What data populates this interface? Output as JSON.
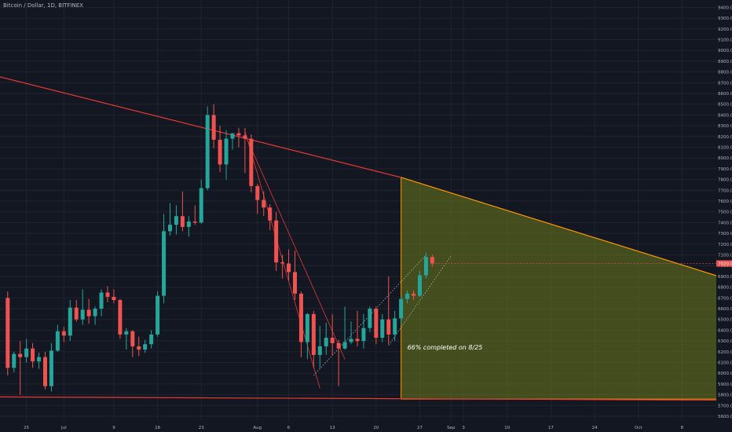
{
  "header": {
    "symbol": "Bitcoin / Dollar, 1D, BITFINEX"
  },
  "colors": {
    "background": "#131722",
    "grid": "#1f2430",
    "up": "#26a69a",
    "down": "#ef5350",
    "trendline": "#e53935",
    "projection_fill": "#6b7a1a",
    "projection_edge": "#ff9800",
    "axis_text": "#b2b5be"
  },
  "chart_data": {
    "type": "candlestick",
    "title": "Bitcoin / Dollar, 1D, BITFINEX",
    "ylim": [
      5600,
      9500
    ],
    "y_ticks": [
      5600,
      5700,
      5800,
      5900,
      6000,
      6100,
      6200,
      6300,
      6400,
      6500,
      6600,
      6700,
      6800,
      6900,
      7000,
      7100,
      7200,
      7300,
      7400,
      7500,
      7600,
      7700,
      7800,
      7900,
      8000,
      8100,
      8200,
      8300,
      8400,
      8500,
      8600,
      8700,
      8800,
      8900,
      9000,
      9100,
      9200,
      9300,
      9400
    ],
    "x_tick_labels": [
      "25",
      "Jul",
      "9",
      "16",
      "23",
      "Aug",
      "6",
      "13",
      "20",
      "27",
      "Sep",
      "3",
      "10",
      "17",
      "24",
      "Oct",
      "8"
    ],
    "x_tick_dates": [
      "2018-06-25",
      "2018-07-01",
      "2018-07-09",
      "2018-07-16",
      "2018-07-23",
      "2018-08-01",
      "2018-08-06",
      "2018-08-13",
      "2018-08-20",
      "2018-08-27",
      "2018-09-01",
      "2018-09-03",
      "2018-09-10",
      "2018-09-17",
      "2018-09-24",
      "2018-10-01",
      "2018-10-08"
    ],
    "start_date": "2018-06-22",
    "candles": [
      {
        "date": "2018-06-22",
        "o": 6700,
        "h": 6760,
        "l": 5980,
        "c": 6050
      },
      {
        "date": "2018-06-23",
        "o": 6050,
        "h": 6200,
        "l": 6010,
        "c": 6180
      },
      {
        "date": "2018-06-24",
        "o": 6180,
        "h": 6300,
        "l": 5800,
        "c": 6150
      },
      {
        "date": "2018-06-25",
        "o": 6150,
        "h": 6320,
        "l": 6100,
        "c": 6230
      },
      {
        "date": "2018-06-26",
        "o": 6230,
        "h": 6280,
        "l": 6050,
        "c": 6110
      },
      {
        "date": "2018-06-27",
        "o": 6110,
        "h": 6190,
        "l": 6040,
        "c": 6150
      },
      {
        "date": "2018-06-28",
        "o": 6150,
        "h": 6200,
        "l": 5850,
        "c": 5880
      },
      {
        "date": "2018-06-29",
        "o": 5880,
        "h": 6280,
        "l": 5830,
        "c": 6210
      },
      {
        "date": "2018-06-30",
        "o": 6210,
        "h": 6450,
        "l": 6200,
        "c": 6390
      },
      {
        "date": "2018-07-01",
        "o": 6390,
        "h": 6430,
        "l": 6290,
        "c": 6350
      },
      {
        "date": "2018-07-02",
        "o": 6350,
        "h": 6680,
        "l": 6300,
        "c": 6610
      },
      {
        "date": "2018-07-03",
        "o": 6610,
        "h": 6680,
        "l": 6480,
        "c": 6500
      },
      {
        "date": "2018-07-04",
        "o": 6500,
        "h": 6780,
        "l": 6450,
        "c": 6590
      },
      {
        "date": "2018-07-05",
        "o": 6590,
        "h": 6690,
        "l": 6460,
        "c": 6530
      },
      {
        "date": "2018-07-06",
        "o": 6530,
        "h": 6620,
        "l": 6450,
        "c": 6600
      },
      {
        "date": "2018-07-07",
        "o": 6600,
        "h": 6780,
        "l": 6530,
        "c": 6750
      },
      {
        "date": "2018-07-08",
        "o": 6750,
        "h": 6810,
        "l": 6660,
        "c": 6710
      },
      {
        "date": "2018-07-09",
        "o": 6710,
        "h": 6780,
        "l": 6650,
        "c": 6680
      },
      {
        "date": "2018-07-10",
        "o": 6680,
        "h": 6690,
        "l": 6320,
        "c": 6360
      },
      {
        "date": "2018-07-11",
        "o": 6360,
        "h": 6420,
        "l": 6220,
        "c": 6390
      },
      {
        "date": "2018-07-12",
        "o": 6390,
        "h": 6400,
        "l": 6150,
        "c": 6250
      },
      {
        "date": "2018-07-13",
        "o": 6250,
        "h": 6340,
        "l": 6160,
        "c": 6220
      },
      {
        "date": "2018-07-14",
        "o": 6220,
        "h": 6310,
        "l": 6190,
        "c": 6270
      },
      {
        "date": "2018-07-15",
        "o": 6270,
        "h": 6400,
        "l": 6230,
        "c": 6360
      },
      {
        "date": "2018-07-16",
        "o": 6360,
        "h": 6760,
        "l": 6340,
        "c": 6720
      },
      {
        "date": "2018-07-17",
        "o": 6720,
        "h": 7480,
        "l": 6650,
        "c": 7320
      },
      {
        "date": "2018-07-18",
        "o": 7320,
        "h": 7580,
        "l": 7280,
        "c": 7380
      },
      {
        "date": "2018-07-19",
        "o": 7380,
        "h": 7560,
        "l": 7290,
        "c": 7460
      },
      {
        "date": "2018-07-20",
        "o": 7460,
        "h": 7690,
        "l": 7320,
        "c": 7360
      },
      {
        "date": "2018-07-21",
        "o": 7360,
        "h": 7460,
        "l": 7270,
        "c": 7410
      },
      {
        "date": "2018-07-22",
        "o": 7410,
        "h": 7560,
        "l": 7380,
        "c": 7400
      },
      {
        "date": "2018-07-23",
        "o": 7400,
        "h": 7800,
        "l": 7390,
        "c": 7720
      },
      {
        "date": "2018-07-24",
        "o": 7720,
        "h": 8480,
        "l": 7700,
        "c": 8400
      },
      {
        "date": "2018-07-25",
        "o": 8400,
        "h": 8500,
        "l": 8090,
        "c": 8170
      },
      {
        "date": "2018-07-26",
        "o": 8170,
        "h": 8300,
        "l": 7870,
        "c": 7940
      },
      {
        "date": "2018-07-27",
        "o": 7940,
        "h": 8260,
        "l": 7800,
        "c": 8180
      },
      {
        "date": "2018-07-28",
        "o": 8180,
        "h": 8230,
        "l": 8080,
        "c": 8230
      },
      {
        "date": "2018-07-29",
        "o": 8230,
        "h": 8280,
        "l": 8100,
        "c": 8210
      },
      {
        "date": "2018-07-30",
        "o": 8210,
        "h": 8280,
        "l": 7860,
        "c": 8180
      },
      {
        "date": "2018-07-31",
        "o": 8180,
        "h": 8220,
        "l": 7680,
        "c": 7740
      },
      {
        "date": "2018-08-01",
        "o": 7740,
        "h": 7760,
        "l": 7480,
        "c": 7610
      },
      {
        "date": "2018-08-02",
        "o": 7610,
        "h": 7690,
        "l": 7460,
        "c": 7540
      },
      {
        "date": "2018-08-03",
        "o": 7540,
        "h": 7570,
        "l": 7330,
        "c": 7420
      },
      {
        "date": "2018-08-04",
        "o": 7420,
        "h": 7500,
        "l": 6950,
        "c": 7030
      },
      {
        "date": "2018-08-05",
        "o": 7030,
        "h": 7100,
        "l": 6880,
        "c": 7020
      },
      {
        "date": "2018-08-06",
        "o": 7020,
        "h": 7150,
        "l": 6860,
        "c": 6940
      },
      {
        "date": "2018-08-07",
        "o": 6940,
        "h": 7140,
        "l": 6680,
        "c": 6740
      },
      {
        "date": "2018-08-08",
        "o": 6740,
        "h": 6760,
        "l": 6150,
        "c": 6290
      },
      {
        "date": "2018-08-09",
        "o": 6290,
        "h": 6560,
        "l": 6130,
        "c": 6550
      },
      {
        "date": "2018-08-10",
        "o": 6550,
        "h": 6580,
        "l": 6050,
        "c": 6170
      },
      {
        "date": "2018-08-11",
        "o": 6170,
        "h": 6440,
        "l": 6050,
        "c": 6250
      },
      {
        "date": "2018-08-12",
        "o": 6250,
        "h": 6470,
        "l": 6170,
        "c": 6330
      },
      {
        "date": "2018-08-13",
        "o": 6330,
        "h": 6550,
        "l": 6170,
        "c": 6280
      },
      {
        "date": "2018-08-14",
        "o": 6280,
        "h": 6310,
        "l": 5880,
        "c": 6230
      },
      {
        "date": "2018-08-15",
        "o": 6230,
        "h": 6620,
        "l": 6220,
        "c": 6290
      },
      {
        "date": "2018-08-16",
        "o": 6290,
        "h": 6480,
        "l": 6270,
        "c": 6320
      },
      {
        "date": "2018-08-17",
        "o": 6320,
        "h": 6580,
        "l": 6250,
        "c": 6300
      },
      {
        "date": "2018-08-18",
        "o": 6300,
        "h": 6550,
        "l": 6230,
        "c": 6420
      },
      {
        "date": "2018-08-19",
        "o": 6420,
        "h": 6620,
        "l": 6380,
        "c": 6600
      },
      {
        "date": "2018-08-20",
        "o": 6600,
        "h": 6620,
        "l": 6270,
        "c": 6330
      },
      {
        "date": "2018-08-21",
        "o": 6330,
        "h": 6550,
        "l": 6290,
        "c": 6500
      },
      {
        "date": "2018-08-22",
        "o": 6500,
        "h": 6900,
        "l": 6270,
        "c": 6360
      },
      {
        "date": "2018-08-23",
        "o": 6360,
        "h": 6580,
        "l": 6300,
        "c": 6510
      },
      {
        "date": "2018-08-24",
        "o": 6510,
        "h": 6710,
        "l": 6450,
        "c": 6690
      },
      {
        "date": "2018-08-25",
        "o": 6690,
        "h": 6770,
        "l": 6650,
        "c": 6740
      },
      {
        "date": "2018-08-26",
        "o": 6740,
        "h": 6770,
        "l": 6680,
        "c": 6720
      },
      {
        "date": "2018-08-27",
        "o": 6720,
        "h": 6950,
        "l": 6710,
        "c": 6910
      },
      {
        "date": "2018-08-28",
        "o": 6910,
        "h": 7120,
        "l": 6880,
        "c": 7080
      },
      {
        "date": "2018-08-29",
        "o": 7080,
        "h": 7100,
        "l": 6990,
        "c": 7020
      }
    ],
    "annotations": {
      "descending_trendline": {
        "from": {
          "date": "2018-05-28",
          "price": 9100
        },
        "to": {
          "date": "2018-10-15",
          "price": 6880
        }
      },
      "support_line": {
        "from": {
          "date": "2018-06-22",
          "price": 5780
        },
        "to": {
          "date": "2018-10-15",
          "price": 5750
        }
      },
      "projection_triangle": {
        "start_date": "2018-08-24",
        "top_price": 7820,
        "bottom_price": 5760,
        "end_date": "2018-10-15"
      },
      "current_price_tag": "7020.0",
      "text_note": "66% completed on 8/25"
    }
  }
}
